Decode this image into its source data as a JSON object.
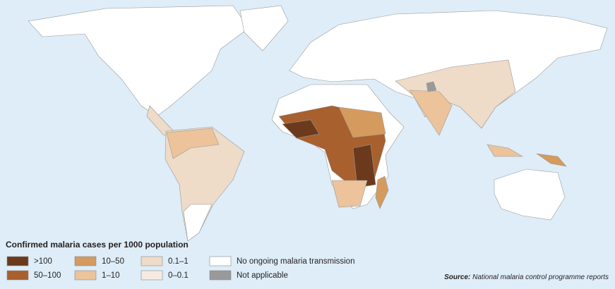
{
  "legend": {
    "title": "Confirmed malaria cases per 1000 population",
    "items": [
      {
        "label": ">100",
        "color": "#6b3a1c"
      },
      {
        "label": "50–100",
        "color": "#a8602e"
      },
      {
        "label": "10–50",
        "color": "#d59a5d"
      },
      {
        "label": "1–10",
        "color": "#ecc39a"
      },
      {
        "label": "0.1–1",
        "color": "#eedbc8"
      },
      {
        "label": "0–0.1",
        "color": "#f6ebe2"
      },
      {
        "label": "No ongoing malaria transmission",
        "color": "#ffffff"
      },
      {
        "label": "Not applicable",
        "color": "#999999"
      }
    ]
  },
  "source": {
    "label": "Source:",
    "text": "National malaria control programme reports"
  }
}
